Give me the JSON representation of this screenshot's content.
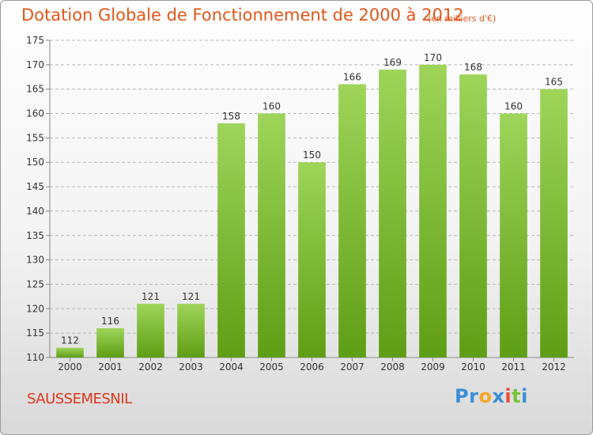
{
  "title": "Dotation Globale de Fonctionnement de 2000 à 2012",
  "unit_note": "(en milliers d'€)",
  "commune": "SAUSSEMESNIL",
  "logo": {
    "letters": [
      {
        "ch": "P",
        "color": "#3a8fd8"
      },
      {
        "ch": "r",
        "color": "#3a8fd8"
      },
      {
        "ch": "o",
        "color": "#f5a623"
      },
      {
        "ch": "x",
        "color": "#3a8fd8"
      },
      {
        "ch": "i",
        "color": "#e94b3c"
      },
      {
        "ch": "t",
        "color": "#78c13a"
      },
      {
        "ch": "i",
        "color": "#3a8fd8"
      }
    ]
  },
  "colors": {
    "bar_top": "#9ed55a",
    "bar_bottom": "#5e9e14",
    "grid": "#b8b8b8",
    "axis_text": "#333333"
  },
  "chart_data": {
    "type": "bar",
    "categories": [
      "2000",
      "2001",
      "2002",
      "2003",
      "2004",
      "2005",
      "2006",
      "2007",
      "2008",
      "2009",
      "2010",
      "2011",
      "2012"
    ],
    "values": [
      112,
      116,
      121,
      121,
      158,
      160,
      150,
      166,
      169,
      170,
      168,
      160,
      165
    ],
    "xlabel": "",
    "ylabel": "",
    "ylim": [
      110,
      175
    ],
    "yticks": [
      110,
      115,
      120,
      125,
      130,
      135,
      140,
      145,
      150,
      155,
      160,
      165,
      170,
      175
    ],
    "grid": true,
    "data_labels": true
  }
}
